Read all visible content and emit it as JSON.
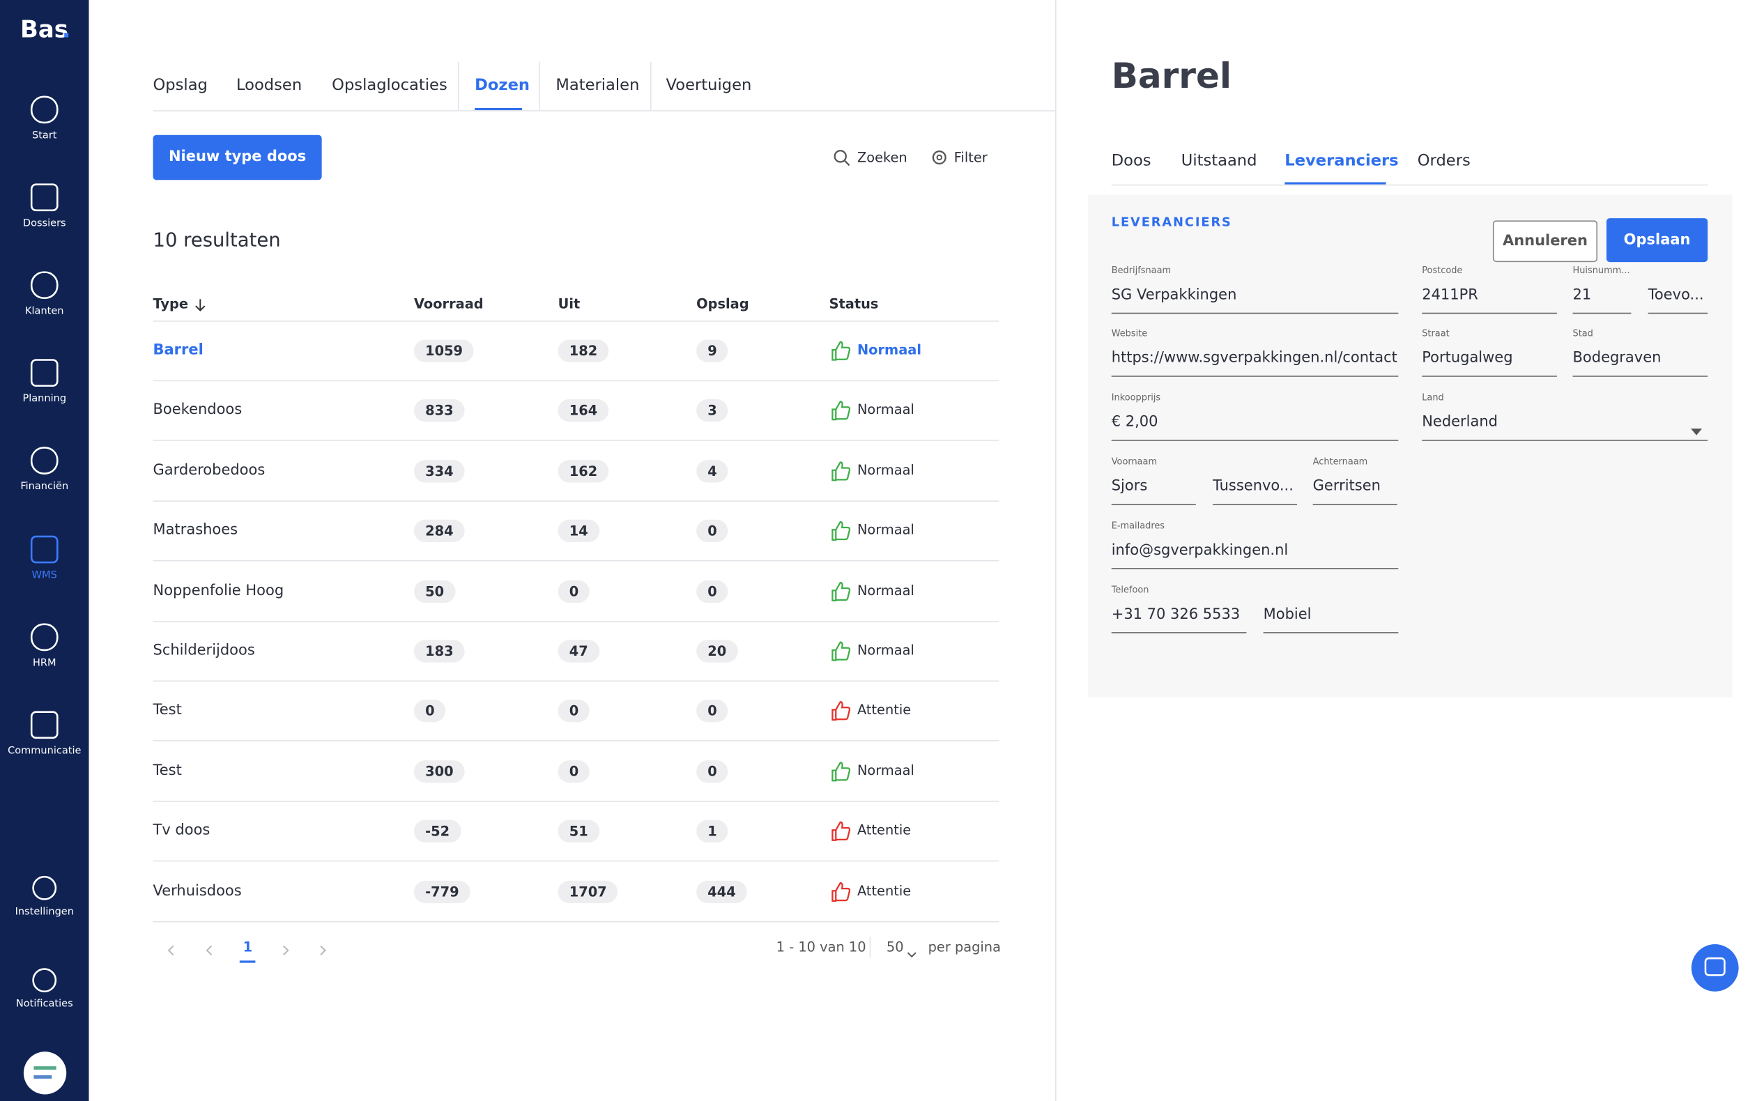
{
  "sidebar": {
    "logo": "Bas",
    "logo_dot": ".",
    "items": [
      {
        "label": "Start"
      },
      {
        "label": "Dossiers"
      },
      {
        "label": "Klanten"
      },
      {
        "label": "Planning"
      },
      {
        "label": "Financiën"
      },
      {
        "label": "WMS",
        "active": true
      },
      {
        "label": "HRM"
      },
      {
        "label": "Communicatie"
      }
    ],
    "bottom": [
      {
        "label": "Instellingen"
      },
      {
        "label": "Notificaties"
      }
    ]
  },
  "tabs": [
    {
      "label": "Opslag"
    },
    {
      "label": "Loodsen"
    },
    {
      "label": "Opslaglocaties"
    },
    {
      "label": "Dozen",
      "active": true
    },
    {
      "label": "Materialen"
    },
    {
      "label": "Voertuigen"
    }
  ],
  "toolbar": {
    "new_button": "Nieuw type doos",
    "search": "Zoeken",
    "filter": "Filter"
  },
  "results": "10 resultaten",
  "table": {
    "columns": [
      "Type",
      "Voorraad",
      "Uit",
      "Opslag",
      "Status"
    ],
    "rows": [
      {
        "cells": [
          "Barrel",
          "1059",
          "182",
          "9",
          "Normaal"
        ],
        "status_color": "#3fae49",
        "selected": true
      },
      {
        "cells": [
          "Boekendoos",
          "833",
          "164",
          "3",
          "Normaal"
        ],
        "status_color": "#3fae49"
      },
      {
        "cells": [
          "Garderobedoos",
          "334",
          "162",
          "4",
          "Normaal"
        ],
        "status_color": "#3fae49"
      },
      {
        "cells": [
          "Matrashoes",
          "284",
          "14",
          "0",
          "Normaal"
        ],
        "status_color": "#3fae49"
      },
      {
        "cells": [
          "Noppenfolie Hoog",
          "50",
          "0",
          "0",
          "Normaal"
        ],
        "status_color": "#3fae49"
      },
      {
        "cells": [
          "Schilderijdoos",
          "183",
          "47",
          "20",
          "Normaal"
        ],
        "status_color": "#3fae49"
      },
      {
        "cells": [
          "Test",
          "0",
          "0",
          "0",
          "Attentie"
        ],
        "status_color": "#e5312b"
      },
      {
        "cells": [
          "Test",
          "300",
          "0",
          "0",
          "Normaal"
        ],
        "status_color": "#3fae49"
      },
      {
        "cells": [
          "Tv doos",
          "-52",
          "51",
          "1",
          "Attentie"
        ],
        "status_color": "#e5312b"
      },
      {
        "cells": [
          "Verhuisdoos",
          "-779",
          "1707",
          "444",
          "Attentie"
        ],
        "status_color": "#e5312b"
      }
    ]
  },
  "pagination": {
    "page": "1",
    "range": "1 - 10 van 10",
    "per_page": "50",
    "per_page_label": "per pagina"
  },
  "detail": {
    "title": "Barrel",
    "tabs": [
      {
        "label": "Doos"
      },
      {
        "label": "Uitstaand"
      },
      {
        "label": "Leveranciers",
        "active": true
      },
      {
        "label": "Orders"
      }
    ],
    "section": "LEVERANCIERS",
    "cancel": "Annuleren",
    "save": "Opslaan",
    "fields": [
      {
        "label": "Bedrijfsnaam",
        "value": "SG Verpakkingen"
      },
      {
        "label": "Postcode",
        "value": "2411PR"
      },
      {
        "label": "Huisnumm...",
        "value": "21"
      },
      {
        "value": "Toevo..."
      },
      {
        "label": "Website",
        "value": "https://www.sgverpakkingen.nl/contact"
      },
      {
        "label": "Straat",
        "value": "Portugalweg"
      },
      {
        "label": "Stad",
        "value": "Bodegraven"
      },
      {
        "label": "Inkoopprijs",
        "value": "€ 2,00"
      },
      {
        "label": "Land",
        "value": "Nederland",
        "dropdown": true
      },
      {
        "label": "Voornaam",
        "value": "Sjors"
      },
      {
        "value": "Tussenvo..."
      },
      {
        "label": "Achternaam",
        "value": "Gerritsen"
      },
      {
        "label": "E-mailadres",
        "value": "info@sgverpakkingen.nl"
      },
      {
        "label": "Telefoon",
        "value": "+31 70 326 5533"
      },
      {
        "value": "Mobiel"
      }
    ]
  }
}
